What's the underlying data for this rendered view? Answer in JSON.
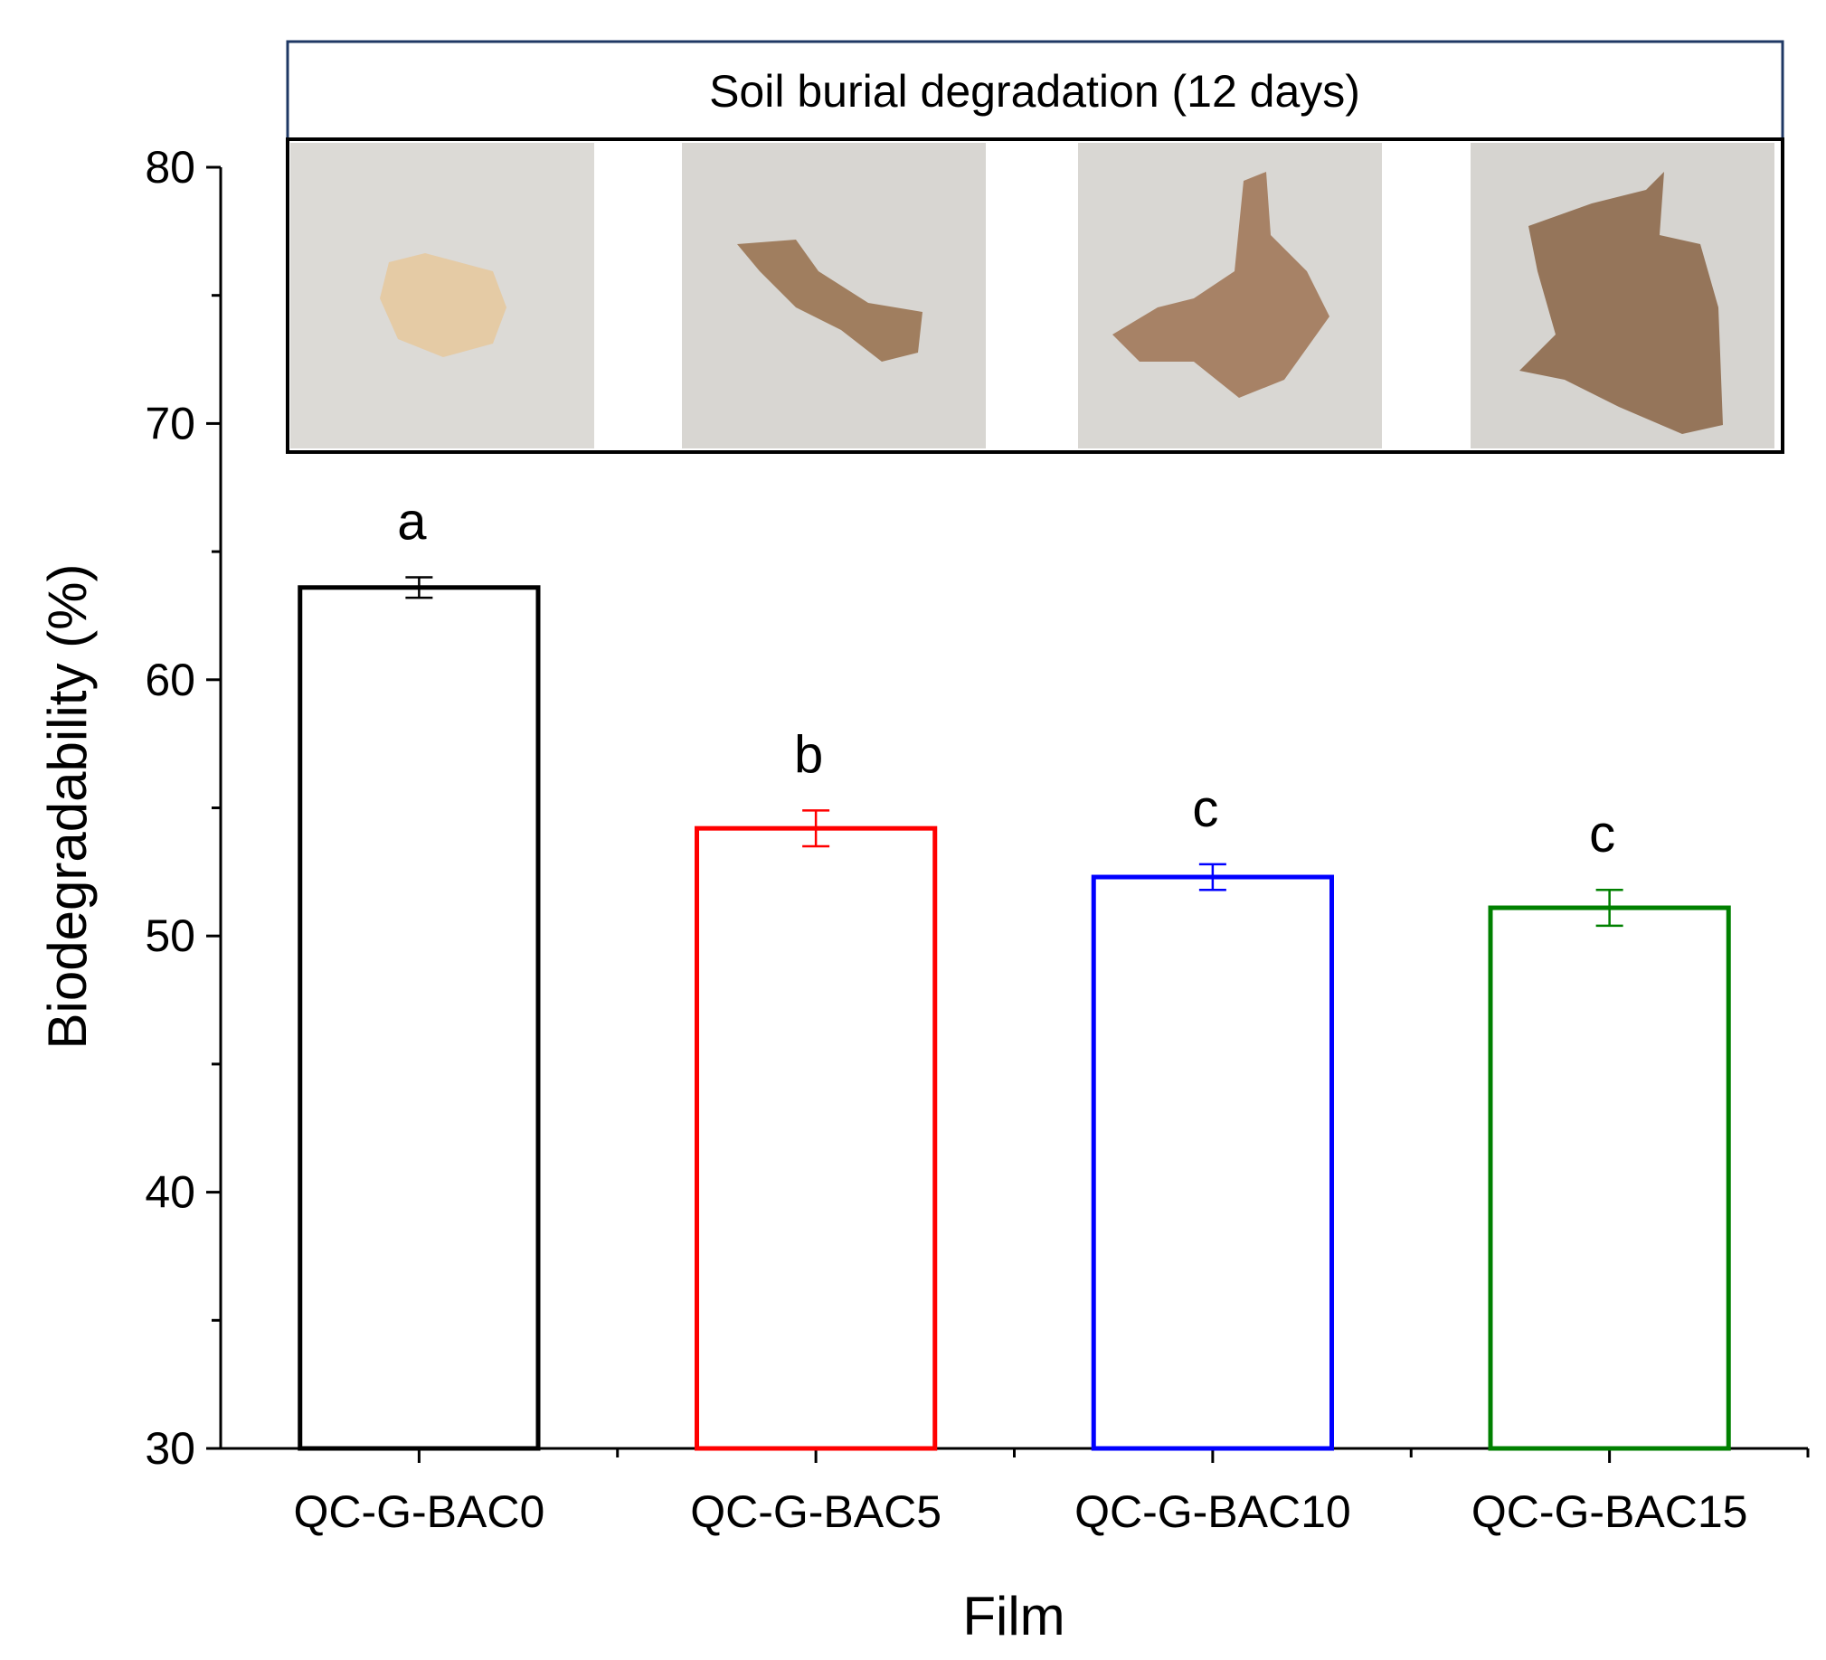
{
  "chart_data": {
    "type": "bar",
    "title": "",
    "xlabel": "Film",
    "ylabel": "Biodegradability (%)",
    "ylim": [
      30,
      80
    ],
    "yticks": [
      30,
      40,
      50,
      60,
      70,
      80
    ],
    "categories": [
      "QC-G-BAC0",
      "QC-G-BAC5",
      "QC-G-BAC10",
      "QC-G-BAC15"
    ],
    "values": [
      63.6,
      54.2,
      52.3,
      51.1
    ],
    "errors": [
      0.4,
      0.7,
      0.5,
      0.7
    ],
    "significance": [
      "a",
      "b",
      "c",
      "c"
    ],
    "colors": [
      "#000000",
      "#ff0000",
      "#0000ff",
      "#008000"
    ],
    "fill": "none",
    "grid": false,
    "legend": "none"
  },
  "inset": {
    "title": "Soil burial degradation (12 days)",
    "photos": [
      {
        "tone": "#dcdad6",
        "sample": "#e6c9a0"
      },
      {
        "tone": "#d8d6d2",
        "sample": "#9a7452"
      },
      {
        "tone": "#d9d7d3",
        "sample": "#a1795a"
      },
      {
        "tone": "#d6d4d0",
        "sample": "#8e6a4d"
      }
    ]
  }
}
